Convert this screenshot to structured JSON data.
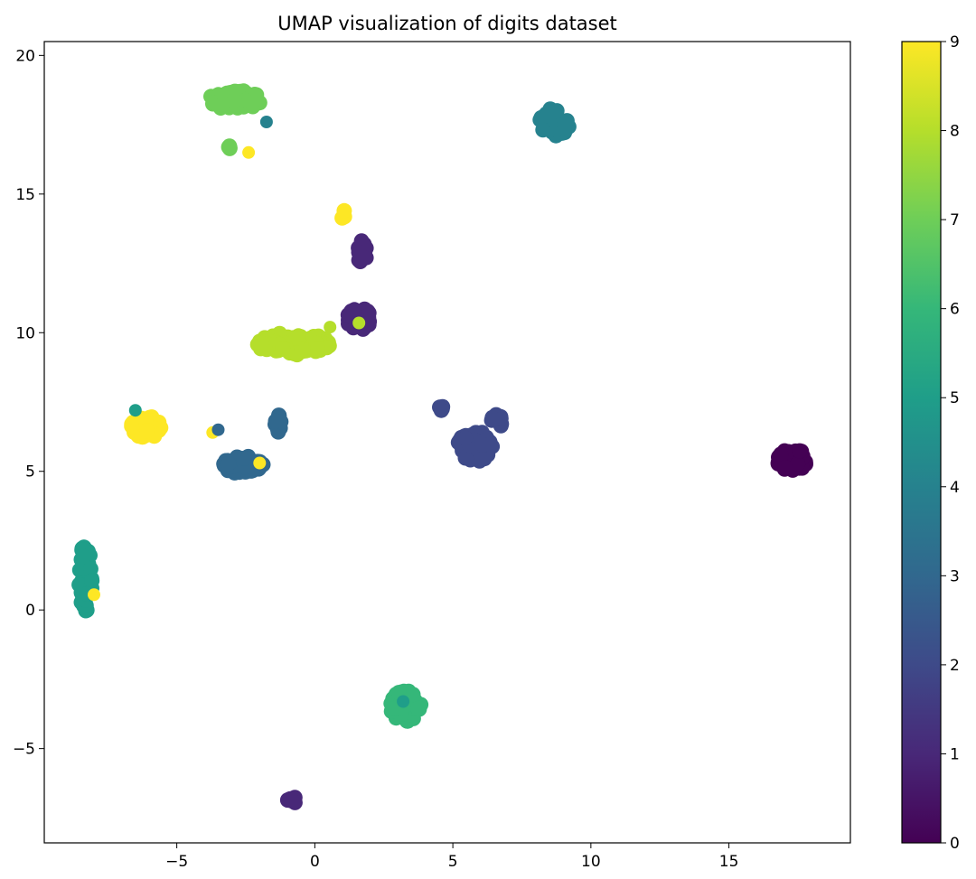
{
  "chart_data": {
    "type": "scatter",
    "title": "UMAP visualization of digits dataset",
    "xlabel": "",
    "ylabel": "",
    "xlim": [
      -9.8,
      19.4
    ],
    "ylim": [
      -8.4,
      20.5
    ],
    "xticks": [
      -5,
      0,
      5,
      10,
      15
    ],
    "yticks": [
      -5,
      0,
      5,
      10,
      15,
      20
    ],
    "grid": false,
    "colorbar": {
      "min": 0,
      "max": 9,
      "ticks": [
        0,
        1,
        2,
        3,
        4,
        5,
        6,
        7,
        8,
        9
      ],
      "colormap": "viridis"
    },
    "clusters": [
      {
        "label": 0,
        "cx": 17.3,
        "cy": 5.4,
        "rx": 0.55,
        "ry": 0.4,
        "n": 80
      },
      {
        "label": 1,
        "cx": 1.6,
        "cy": 10.5,
        "rx": 0.45,
        "ry": 0.4,
        "n": 45
      },
      {
        "label": 1,
        "cx": 1.7,
        "cy": 12.9,
        "rx": 0.18,
        "ry": 0.45,
        "n": 22
      },
      {
        "label": 1,
        "cx": -0.85,
        "cy": -6.85,
        "rx": 0.2,
        "ry": 0.15,
        "n": 6
      },
      {
        "label": 2,
        "cx": 5.8,
        "cy": 5.9,
        "rx": 0.65,
        "ry": 0.55,
        "n": 70
      },
      {
        "label": 2,
        "cx": 6.55,
        "cy": 6.8,
        "rx": 0.25,
        "ry": 0.25,
        "n": 10
      },
      {
        "label": 2,
        "cx": 4.6,
        "cy": 7.3,
        "rx": 0.12,
        "ry": 0.12,
        "n": 4
      },
      {
        "label": 3,
        "cx": -2.6,
        "cy": 5.2,
        "rx": 0.75,
        "ry": 0.35,
        "n": 60
      },
      {
        "label": 3,
        "cx": -1.3,
        "cy": 6.7,
        "rx": 0.15,
        "ry": 0.35,
        "n": 10
      },
      {
        "label": 4,
        "cx": 8.7,
        "cy": 17.6,
        "rx": 0.55,
        "ry": 0.5,
        "n": 55
      },
      {
        "label": 5,
        "cx": -8.3,
        "cy": 1.2,
        "rx": 0.25,
        "ry": 1.25,
        "n": 55
      },
      {
        "label": 6,
        "cx": 3.3,
        "cy": -3.5,
        "rx": 0.55,
        "ry": 0.6,
        "n": 65
      },
      {
        "label": 7,
        "cx": -2.9,
        "cy": 18.4,
        "rx": 0.95,
        "ry": 0.35,
        "n": 60
      },
      {
        "label": 7,
        "cx": -3.0,
        "cy": 16.7,
        "rx": 0.12,
        "ry": 0.12,
        "n": 4
      },
      {
        "label": 8,
        "cx": -0.8,
        "cy": 9.6,
        "rx": 1.35,
        "ry": 0.4,
        "n": 75
      },
      {
        "label": 9,
        "cx": -6.1,
        "cy": 6.6,
        "rx": 0.55,
        "ry": 0.4,
        "n": 60
      },
      {
        "label": 9,
        "cx": 1.0,
        "cy": 14.3,
        "rx": 0.12,
        "ry": 0.18,
        "n": 4
      }
    ],
    "outliers": [
      {
        "label": 4,
        "x": -1.75,
        "y": 17.6
      },
      {
        "label": 9,
        "x": -2.4,
        "y": 16.5
      },
      {
        "label": 9,
        "x": -8.0,
        "y": 0.55
      },
      {
        "label": 9,
        "x": -3.7,
        "y": 6.4
      },
      {
        "label": 9,
        "x": -2.0,
        "y": 5.3
      },
      {
        "label": 3,
        "x": -3.5,
        "y": 6.5
      },
      {
        "label": 5,
        "x": -6.5,
        "y": 7.2
      },
      {
        "label": 8,
        "x": 1.6,
        "y": 10.35
      },
      {
        "label": 8,
        "x": 0.55,
        "y": 10.2
      },
      {
        "label": 5,
        "x": 3.2,
        "y": -3.3
      }
    ]
  }
}
